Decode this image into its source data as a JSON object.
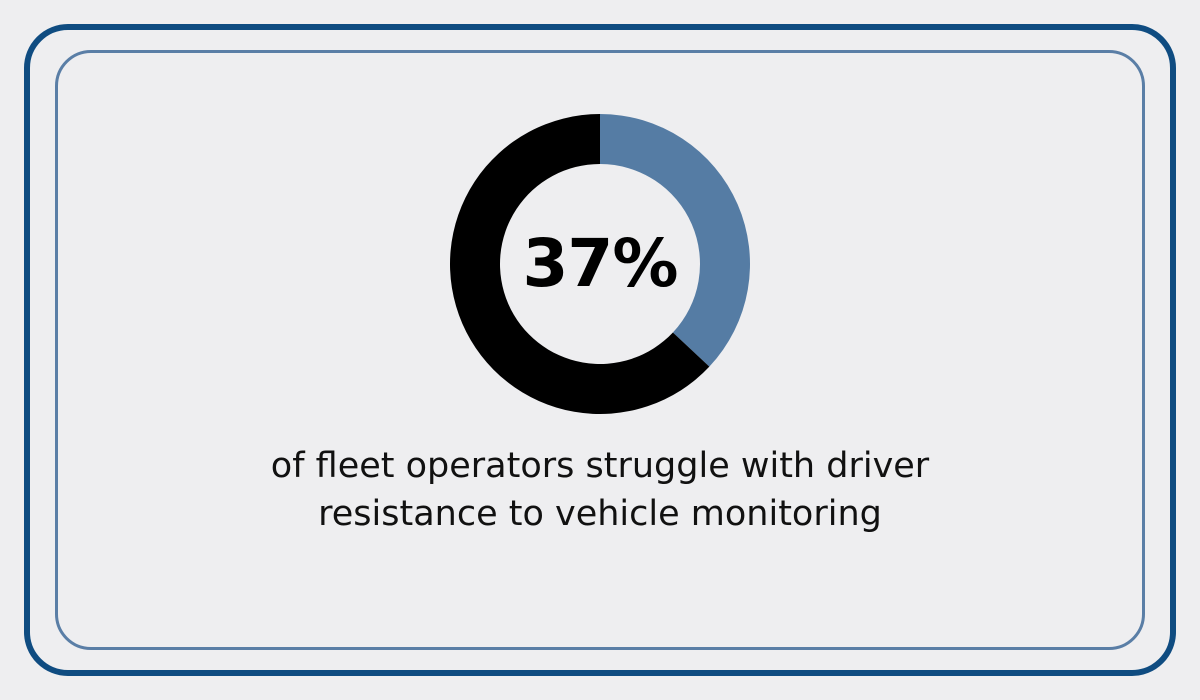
{
  "chart_data": {
    "type": "pie",
    "variant": "donut",
    "values": [
      37,
      63
    ],
    "highlight_value_label": "37%",
    "caption": "of fleet operators struggle with driver resistance to vehicle monitoring",
    "colors": {
      "highlight": "#557ca4",
      "remainder": "#000000"
    }
  },
  "colors": {
    "background": "#eeeef0",
    "outer_border": "#0f4c81",
    "inner_border": "#5a7ea6"
  }
}
